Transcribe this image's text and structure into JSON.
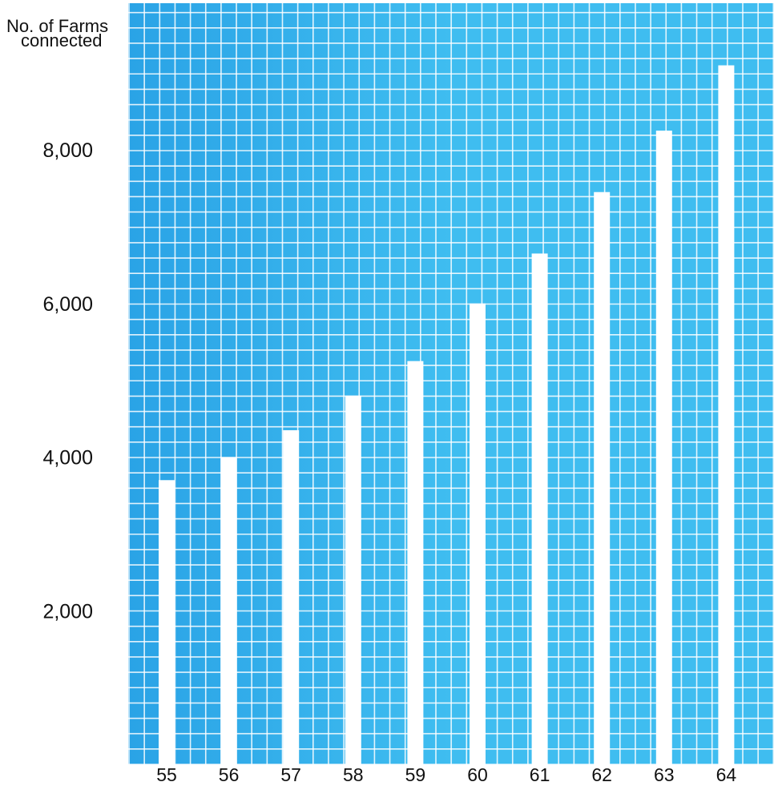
{
  "colors": {
    "plot_background": "#3fbdf0",
    "plot_background_edge": "#2aa3e6",
    "gridline": "#ffffff",
    "bar": "#ffffff",
    "text": "#111111"
  },
  "chart_data": {
    "type": "bar",
    "ylabel_line1": "No. of Farms",
    "ylabel_line2": "connected",
    "xlabel": "",
    "title": "",
    "categories": [
      "55",
      "56",
      "57",
      "58",
      "59",
      "60",
      "61",
      "62",
      "63",
      "64"
    ],
    "values": [
      3700,
      4000,
      4350,
      4800,
      5250,
      6000,
      6650,
      7450,
      8250,
      9100
    ],
    "ylim": [
      0,
      9800
    ],
    "yticks": [
      2000,
      4000,
      6000,
      8000
    ],
    "ytick_labels": [
      "2,000",
      "4,000",
      "6,000",
      "8,000"
    ],
    "grid": true,
    "legend": "none"
  }
}
